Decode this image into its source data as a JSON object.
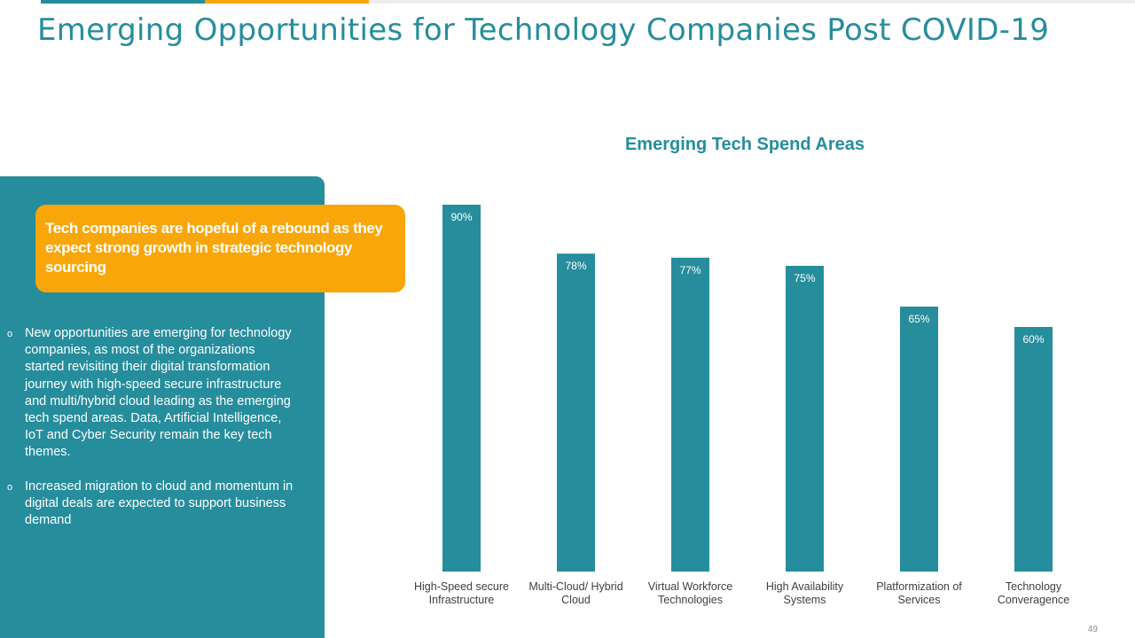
{
  "colors": {
    "teal": "#268d9c",
    "orange": "#f8a60a",
    "gray": "#eeeeee",
    "text_teal": "#268d9c"
  },
  "slide": {
    "title": "Emerging Opportunities for Technology Companies Post COVID-19",
    "page_number": "49"
  },
  "callout": {
    "text": "Tech companies are hopeful of a rebound as they expect strong growth in strategic technology sourcing"
  },
  "bullets": [
    {
      "marker": "o",
      "text": "New opportunities are emerging for technology companies, as most of the organizations started revisiting their digital transformation journey with high-speed secure infrastructure  and multi/hybrid cloud leading as the emerging tech spend areas. Data, Artificial Intelligence,  IoT  and Cyber Security remain the key tech themes."
    },
    {
      "marker": "o",
      "text": "Increased migration to cloud and momentum  in digital deals are expected to support business demand"
    }
  ],
  "chart_data": {
    "type": "bar",
    "title": "Emerging  Tech Spend Areas",
    "categories": [
      [
        "High-Speed secure",
        "Infrastructure"
      ],
      [
        "Multi-Cloud/ Hybrid",
        "Cloud"
      ],
      [
        "Virtual Workforce",
        "Technologies"
      ],
      [
        "High Availability",
        "Systems"
      ],
      [
        "Platformization of",
        "Services"
      ],
      [
        "Technology",
        "Converagence"
      ]
    ],
    "values": [
      90,
      78,
      77,
      75,
      65,
      60
    ],
    "data_labels": [
      "90%",
      "78%",
      "77%",
      "75%",
      "65%",
      "60%"
    ],
    "ylim": [
      0,
      90
    ],
    "grid": false,
    "xlabel": "",
    "ylabel": ""
  }
}
